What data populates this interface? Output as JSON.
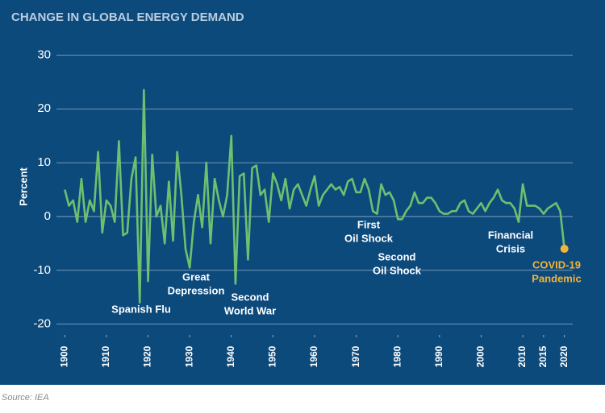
{
  "chart_data": {
    "type": "line",
    "title": "CHANGE IN GLOBAL ENERGY DEMAND",
    "y_label": "Percent",
    "source": "Source: IEA",
    "x": [
      1900,
      1901,
      1902,
      1903,
      1904,
      1905,
      1906,
      1907,
      1908,
      1909,
      1910,
      1911,
      1912,
      1913,
      1914,
      1915,
      1916,
      1917,
      1918,
      1919,
      1920,
      1921,
      1922,
      1923,
      1924,
      1925,
      1926,
      1927,
      1928,
      1929,
      1930,
      1931,
      1932,
      1933,
      1934,
      1935,
      1936,
      1937,
      1938,
      1939,
      1940,
      1941,
      1942,
      1943,
      1944,
      1945,
      1946,
      1947,
      1948,
      1949,
      1950,
      1951,
      1952,
      1953,
      1954,
      1955,
      1956,
      1957,
      1958,
      1959,
      1960,
      1961,
      1962,
      1963,
      1964,
      1965,
      1966,
      1967,
      1968,
      1969,
      1970,
      1971,
      1972,
      1973,
      1974,
      1975,
      1976,
      1977,
      1978,
      1979,
      1980,
      1981,
      1982,
      1983,
      1984,
      1985,
      1986,
      1987,
      1988,
      1989,
      1990,
      1991,
      1992,
      1993,
      1994,
      1995,
      1996,
      1997,
      1998,
      1999,
      2000,
      2001,
      2002,
      2003,
      2004,
      2005,
      2006,
      2007,
      2008,
      2009,
      2010,
      2011,
      2012,
      2013,
      2014,
      2015,
      2016,
      2017,
      2018,
      2019,
      2020
    ],
    "series": [
      {
        "name": "Change in global energy demand",
        "color": "#6cc070",
        "values": [
          5,
          2,
          3,
          -1,
          7,
          -1,
          3,
          1,
          12,
          -3,
          3,
          2,
          -1,
          14,
          -3.5,
          -3,
          7,
          11,
          -16,
          23.5,
          -12,
          11.5,
          0,
          2,
          -5,
          6.5,
          -4.5,
          12,
          4,
          -6,
          -9.5,
          -1,
          4,
          -2,
          10,
          -5,
          7,
          3,
          0,
          4,
          15,
          -12.5,
          7.5,
          8,
          -8,
          9,
          9.5,
          4,
          5,
          -1,
          8,
          6,
          3,
          7,
          1.5,
          5,
          6,
          4,
          2,
          5,
          7.5,
          2,
          4,
          5,
          6,
          5,
          5.5,
          4,
          6.5,
          7,
          4.5,
          4.5,
          7,
          5,
          1,
          0.5,
          6,
          4,
          4.5,
          3,
          -0.5,
          -0.5,
          1,
          2,
          4.5,
          2.5,
          2.5,
          3.5,
          3.5,
          2.5,
          1,
          0.5,
          0.5,
          1,
          1,
          2.5,
          3,
          1,
          0.5,
          1.5,
          2.5,
          1,
          2.5,
          3.5,
          5,
          3,
          2.5,
          2.5,
          1.5,
          -1,
          6,
          2,
          2,
          2,
          1.5,
          0.5,
          1.5,
          2,
          2.5,
          1,
          -6
        ]
      }
    ],
    "highlight_color": "#f5b335",
    "xlim": [
      1898,
      2022
    ],
    "xticks": [
      1900,
      1910,
      1920,
      1930,
      1940,
      1950,
      1960,
      1970,
      1980,
      1990,
      2000,
      2010,
      2015,
      2020
    ],
    "ylim": [
      -22,
      33.5
    ],
    "yticks": [
      30,
      20,
      10,
      0,
      -10,
      -20
    ],
    "grid": true,
    "annotations": [
      {
        "lines": [
          "Spanish Flu"
        ]
      },
      {
        "lines": [
          "Great",
          "Depression"
        ]
      },
      {
        "lines": [
          "Second",
          "World War"
        ]
      },
      {
        "lines": [
          "First",
          "Oil Shock"
        ]
      },
      {
        "lines": [
          "Second",
          "Oil Shock"
        ]
      },
      {
        "lines": [
          "Financial",
          "Crisis"
        ]
      },
      {
        "lines": [
          "COVID-19",
          "Pandemic"
        ]
      }
    ]
  }
}
